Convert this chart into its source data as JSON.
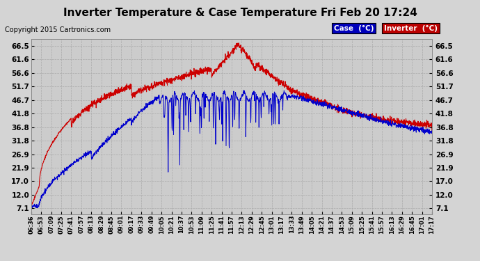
{
  "title": "Inverter Temperature & Case Temperature Fri Feb 20 17:24",
  "copyright": "Copyright 2015 Cartronics.com",
  "legend_items": [
    {
      "label": "Case  (°C)",
      "bg_color": "#0000bb",
      "text_color": "white"
    },
    {
      "label": "Inverter  (°C)",
      "bg_color": "#bb0000",
      "text_color": "white"
    }
  ],
  "yticks": [
    7.1,
    12.0,
    17.0,
    21.9,
    26.9,
    31.8,
    36.8,
    41.8,
    46.7,
    51.7,
    56.6,
    61.6,
    66.5
  ],
  "ylim": [
    5.0,
    69.0
  ],
  "xtick_labels": [
    "06:36",
    "06:53",
    "07:09",
    "07:25",
    "07:41",
    "07:57",
    "08:13",
    "08:29",
    "08:45",
    "09:01",
    "09:17",
    "09:33",
    "09:49",
    "10:05",
    "10:21",
    "10:37",
    "10:53",
    "11:09",
    "11:25",
    "11:41",
    "11:57",
    "12:13",
    "12:29",
    "12:45",
    "13:01",
    "13:17",
    "13:33",
    "13:49",
    "14:05",
    "14:21",
    "14:37",
    "14:53",
    "15:09",
    "15:25",
    "15:41",
    "15:57",
    "16:13",
    "16:29",
    "16:45",
    "17:01",
    "17:17"
  ],
  "grid_color": "#aaaaaa",
  "bg_color": "#d4d4d4",
  "plot_bg_color": "#cccccc",
  "case_color": "#cc0000",
  "inverter_color": "#0000cc",
  "title_fontsize": 11,
  "copyright_fontsize": 7
}
